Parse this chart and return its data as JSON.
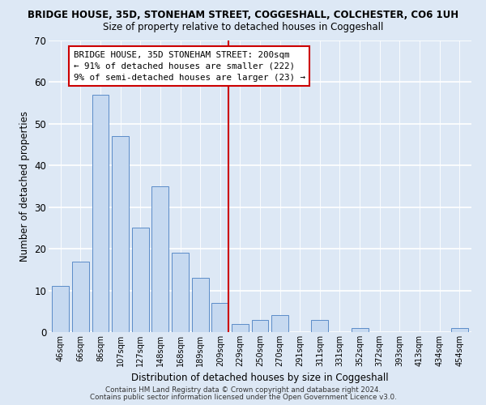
{
  "title": "BRIDGE HOUSE, 35D, STONEHAM STREET, COGGESHALL, COLCHESTER, CO6 1UH",
  "subtitle": "Size of property relative to detached houses in Coggeshall",
  "xlabel": "Distribution of detached houses by size in Coggeshall",
  "ylabel": "Number of detached properties",
  "bar_labels": [
    "46sqm",
    "66sqm",
    "86sqm",
    "107sqm",
    "127sqm",
    "148sqm",
    "168sqm",
    "189sqm",
    "209sqm",
    "229sqm",
    "250sqm",
    "270sqm",
    "291sqm",
    "311sqm",
    "331sqm",
    "352sqm",
    "372sqm",
    "393sqm",
    "413sqm",
    "434sqm",
    "454sqm"
  ],
  "bar_values": [
    11,
    17,
    57,
    47,
    25,
    35,
    19,
    13,
    7,
    2,
    3,
    4,
    0,
    3,
    0,
    1,
    0,
    0,
    0,
    0,
    1
  ],
  "bar_color": "#c6d9f0",
  "bar_edge_color": "#5b8cc8",
  "ylim": [
    0,
    70
  ],
  "yticks": [
    0,
    10,
    20,
    30,
    40,
    50,
    60,
    70
  ],
  "vline_color": "#cc0000",
  "annotation_title": "BRIDGE HOUSE, 35D STONEHAM STREET: 200sqm",
  "annotation_line1": "← 91% of detached houses are smaller (222)",
  "annotation_line2": "9% of semi-detached houses are larger (23) →",
  "annotation_box_color": "#ffffff",
  "annotation_box_edge": "#cc0000",
  "bg_color": "#dde8f5",
  "footer1": "Contains HM Land Registry data © Crown copyright and database right 2024.",
  "footer2": "Contains public sector information licensed under the Open Government Licence v3.0."
}
